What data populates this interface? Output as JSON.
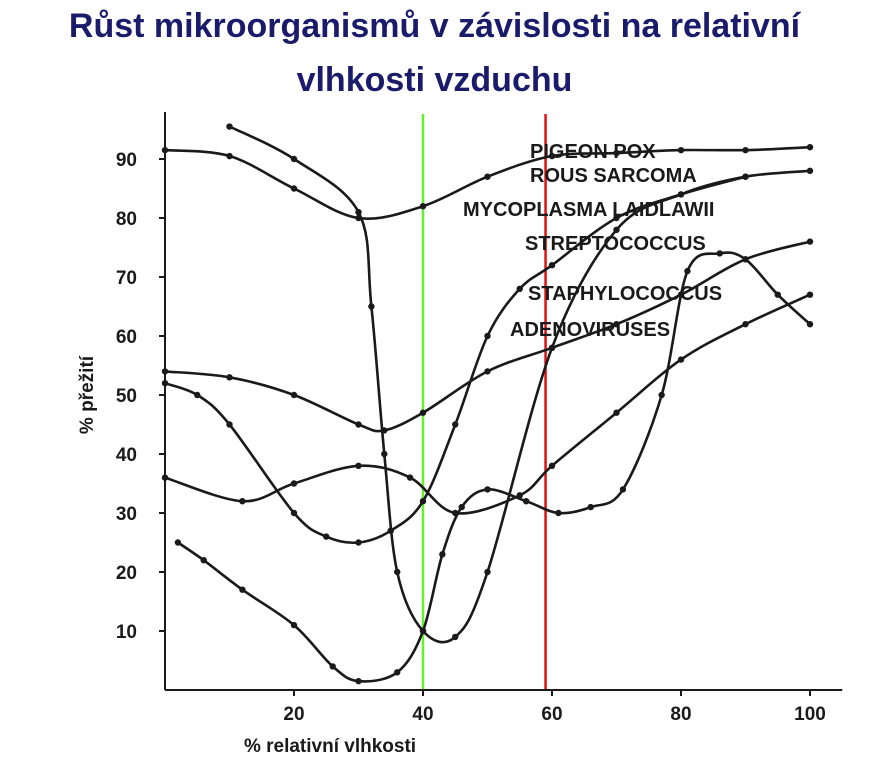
{
  "title_lines": [
    "Růst mikroorganismů v závislosti na relativní",
    "vlhkosti vzduchu"
  ],
  "colors": {
    "title": "#1b1b6b",
    "line": "#1a1a1a",
    "ref_green": "#66ee33",
    "ref_red": "#dd1111"
  },
  "chart_data": {
    "type": "line",
    "title": "Růst mikroorganismů v závislosti na relativní vlhkosti vzduchu",
    "xlabel": "% relativní vlhkosti",
    "ylabel": "% přežití",
    "xlim": [
      0,
      105
    ],
    "ylim": [
      0,
      100
    ],
    "x_ticks": [
      20,
      40,
      60,
      80,
      100
    ],
    "y_ticks": [
      10,
      20,
      30,
      40,
      50,
      60,
      70,
      80,
      90
    ],
    "grid": false,
    "reference_lines": [
      {
        "x": 40,
        "color": "#66ee33"
      },
      {
        "x": 59,
        "color": "#dd1111"
      }
    ],
    "series": [
      {
        "name": "PIGEON POX",
        "x": [
          0,
          10,
          20,
          30,
          40,
          50,
          60,
          70,
          80,
          90,
          100
        ],
        "y": [
          91.5,
          90.5,
          85,
          80,
          82,
          87,
          90.5,
          91,
          91.5,
          91.5,
          92
        ]
      },
      {
        "name": "ROUS SARCOMA",
        "x": [
          10,
          20,
          30,
          32,
          34,
          36,
          40,
          45,
          50,
          60,
          70,
          80,
          90,
          100
        ],
        "y": [
          95.5,
          90,
          81,
          65,
          40,
          20,
          10,
          9,
          20,
          58,
          78,
          84,
          87,
          88
        ]
      },
      {
        "name": "MYCOPLASMA LAIDLAWII",
        "x": [
          0,
          5,
          10,
          20,
          25,
          30,
          35,
          40,
          45,
          50,
          55,
          60,
          70,
          80,
          90
        ],
        "y": [
          52,
          50,
          45,
          30,
          26,
          25,
          27,
          32,
          45,
          60,
          68,
          72,
          80,
          84,
          87
        ]
      },
      {
        "name": "STREPTOCOCCUS",
        "x": [
          0,
          10,
          20,
          30,
          34,
          40,
          50,
          60,
          70,
          80,
          90,
          100
        ],
        "y": [
          54,
          53,
          50,
          45,
          44,
          47,
          54,
          58,
          62,
          67,
          73,
          76
        ]
      },
      {
        "name": "STAPHYLOCOCCUS",
        "x": [
          0,
          12,
          20,
          30,
          38,
          45,
          55,
          60,
          70,
          80,
          90,
          100
        ],
        "y": [
          36,
          32,
          35,
          38,
          36,
          30,
          33,
          38,
          47,
          56,
          62,
          67
        ]
      },
      {
        "name": "ADENOVIRUSES",
        "x": [
          2,
          6,
          12,
          20,
          26,
          30,
          36,
          40,
          43,
          46,
          50,
          56,
          61,
          66,
          71,
          77,
          81,
          86,
          90,
          95,
          100
        ],
        "y": [
          25,
          22,
          17,
          11,
          4,
          1.5,
          3,
          10,
          23,
          31,
          34,
          32,
          30,
          31,
          34,
          50,
          71,
          74,
          73,
          67,
          62
        ]
      }
    ]
  }
}
